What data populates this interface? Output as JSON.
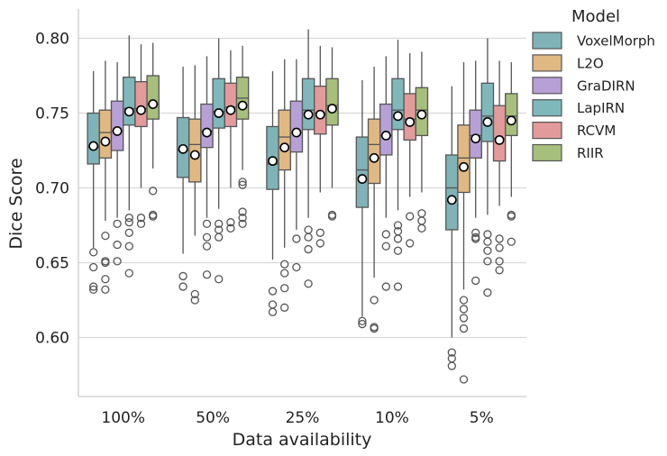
{
  "chart_data": {
    "type": "box",
    "xlabel": "Data availability",
    "ylabel": "Dice Score",
    "ylim": [
      0.56,
      0.82
    ],
    "yticks": [
      0.6,
      0.65,
      0.7,
      0.75,
      0.8
    ],
    "ytick_labels": [
      "0.60",
      "0.65",
      "0.70",
      "0.75",
      "0.80"
    ],
    "grid": "horizontal",
    "legend_position": "outside-top-right",
    "legend_title": "Model",
    "categories": [
      "100%",
      "50%",
      "25%",
      "10%",
      "5%"
    ],
    "series": [
      {
        "name": "VoxelMorph",
        "color": "#7fb3b7",
        "boxes": [
          {
            "whislo": 0.66,
            "q1": 0.716,
            "med": 0.727,
            "q3": 0.75,
            "whishi": 0.778,
            "mean": 0.728,
            "fliers": [
              0.657,
              0.647,
              0.634,
              0.632
            ]
          },
          {
            "whislo": 0.656,
            "q1": 0.707,
            "med": 0.725,
            "q3": 0.747,
            "whishi": 0.781,
            "mean": 0.726,
            "fliers": [
              0.641,
              0.634
            ]
          },
          {
            "whislo": 0.652,
            "q1": 0.699,
            "med": 0.716,
            "q3": 0.741,
            "whishi": 0.778,
            "mean": 0.718,
            "fliers": [
              0.631,
              0.622,
              0.617
            ]
          },
          {
            "whislo": 0.614,
            "q1": 0.687,
            "med": 0.712,
            "q3": 0.734,
            "whishi": 0.772,
            "mean": 0.706,
            "fliers": [
              0.611,
              0.609
            ]
          },
          {
            "whislo": 0.6,
            "q1": 0.672,
            "med": 0.7,
            "q3": 0.722,
            "whishi": 0.768,
            "mean": 0.692,
            "fliers": [
              0.59,
              0.586,
              0.581
            ]
          }
        ]
      },
      {
        "name": "L2O",
        "color": "#e0b882",
        "boxes": [
          {
            "whislo": 0.678,
            "q1": 0.72,
            "med": 0.737,
            "q3": 0.752,
            "whishi": 0.785,
            "mean": 0.731,
            "fliers": [
              0.668,
              0.651,
              0.65,
              0.639,
              0.632
            ]
          },
          {
            "whislo": 0.668,
            "q1": 0.704,
            "med": 0.729,
            "q3": 0.746,
            "whishi": 0.782,
            "mean": 0.722,
            "fliers": [
              0.629,
              0.625
            ]
          },
          {
            "whislo": 0.66,
            "q1": 0.712,
            "med": 0.734,
            "q3": 0.752,
            "whishi": 0.786,
            "mean": 0.727,
            "fliers": [
              0.649,
              0.643,
              0.633,
              0.62
            ]
          },
          {
            "whislo": 0.64,
            "q1": 0.703,
            "med": 0.729,
            "q3": 0.746,
            "whishi": 0.781,
            "mean": 0.72,
            "fliers": [
              0.625,
              0.607,
              0.606
            ]
          },
          {
            "whislo": 0.632,
            "q1": 0.697,
            "med": 0.72,
            "q3": 0.742,
            "whishi": 0.784,
            "mean": 0.714,
            "fliers": [
              0.625,
              0.619,
              0.613,
              0.606,
              0.572
            ]
          }
        ]
      },
      {
        "name": "GraDIRN",
        "color": "#b7a0d6",
        "boxes": [
          {
            "whislo": 0.68,
            "q1": 0.725,
            "med": 0.738,
            "q3": 0.758,
            "whishi": 0.784,
            "mean": 0.738,
            "fliers": [
              0.676,
              0.662,
              0.651
            ]
          },
          {
            "whislo": 0.68,
            "q1": 0.727,
            "med": 0.738,
            "q3": 0.756,
            "whishi": 0.788,
            "mean": 0.737,
            "fliers": [
              0.676,
              0.667,
              0.661,
              0.642
            ]
          },
          {
            "whislo": 0.672,
            "q1": 0.724,
            "med": 0.737,
            "q3": 0.758,
            "whishi": 0.786,
            "mean": 0.737,
            "fliers": [
              0.666,
              0.647
            ]
          },
          {
            "whislo": 0.68,
            "q1": 0.722,
            "med": 0.735,
            "q3": 0.756,
            "whishi": 0.788,
            "mean": 0.735,
            "fliers": [
              0.669,
              0.661,
              0.634
            ]
          },
          {
            "whislo": 0.68,
            "q1": 0.72,
            "med": 0.735,
            "q3": 0.752,
            "whishi": 0.785,
            "mean": 0.733,
            "fliers": [
              0.67,
              0.667,
              0.666,
              0.638
            ]
          }
        ]
      },
      {
        "name": "LapIRN",
        "color": "#7fb8bb",
        "boxes": [
          {
            "whislo": 0.685,
            "q1": 0.742,
            "med": 0.753,
            "q3": 0.774,
            "whishi": 0.802,
            "mean": 0.751,
            "fliers": [
              0.68,
              0.677,
              0.67,
              0.661,
              0.643
            ]
          },
          {
            "whislo": 0.686,
            "q1": 0.74,
            "med": 0.751,
            "q3": 0.773,
            "whishi": 0.8,
            "mean": 0.75,
            "fliers": [
              0.676,
              0.672,
              0.667,
              0.639
            ]
          },
          {
            "whislo": 0.68,
            "q1": 0.739,
            "med": 0.752,
            "q3": 0.773,
            "whishi": 0.806,
            "mean": 0.749,
            "fliers": [
              0.672,
              0.667,
              0.659,
              0.636
            ]
          },
          {
            "whislo": 0.685,
            "q1": 0.739,
            "med": 0.752,
            "q3": 0.773,
            "whishi": 0.799,
            "mean": 0.748,
            "fliers": [
              0.675,
              0.671,
              0.666,
              0.658,
              0.634
            ]
          },
          {
            "whislo": 0.682,
            "q1": 0.731,
            "med": 0.748,
            "q3": 0.77,
            "whishi": 0.8,
            "mean": 0.744,
            "fliers": [
              0.669,
              0.664,
              0.658,
              0.651,
              0.63
            ]
          }
        ]
      },
      {
        "name": "RCVM",
        "color": "#e29a9b",
        "boxes": [
          {
            "whislo": 0.7,
            "q1": 0.741,
            "med": 0.753,
            "q3": 0.771,
            "whishi": 0.796,
            "mean": 0.752,
            "fliers": [
              0.68,
              0.676
            ]
          },
          {
            "whislo": 0.7,
            "q1": 0.741,
            "med": 0.754,
            "q3": 0.77,
            "whishi": 0.792,
            "mean": 0.752,
            "fliers": [
              0.677,
              0.673
            ]
          },
          {
            "whislo": 0.697,
            "q1": 0.736,
            "med": 0.75,
            "q3": 0.768,
            "whishi": 0.795,
            "mean": 0.749,
            "fliers": [
              0.67,
              0.663
            ]
          },
          {
            "whislo": 0.694,
            "q1": 0.732,
            "med": 0.746,
            "q3": 0.763,
            "whishi": 0.79,
            "mean": 0.744,
            "fliers": [
              0.681,
              0.663
            ]
          },
          {
            "whislo": 0.688,
            "q1": 0.718,
            "med": 0.733,
            "q3": 0.755,
            "whishi": 0.785,
            "mean": 0.732,
            "fliers": [
              0.666,
              0.66,
              0.651,
              0.645
            ]
          }
        ]
      },
      {
        "name": "RIIR",
        "color": "#a6bf7c",
        "boxes": [
          {
            "whislo": 0.713,
            "q1": 0.746,
            "med": 0.756,
            "q3": 0.775,
            "whishi": 0.797,
            "mean": 0.756,
            "fliers": [
              0.698,
              0.682,
              0.681
            ]
          },
          {
            "whislo": 0.712,
            "q1": 0.746,
            "med": 0.76,
            "q3": 0.774,
            "whishi": 0.795,
            "mean": 0.755,
            "fliers": [
              0.704,
              0.702,
              0.684,
              0.68,
              0.676
            ]
          },
          {
            "whislo": 0.7,
            "q1": 0.742,
            "med": 0.755,
            "q3": 0.773,
            "whishi": 0.794,
            "mean": 0.753,
            "fliers": [
              0.682,
              0.681
            ]
          },
          {
            "whislo": 0.697,
            "q1": 0.735,
            "med": 0.752,
            "q3": 0.767,
            "whishi": 0.791,
            "mean": 0.749,
            "fliers": [
              0.683,
              0.678,
              0.673
            ]
          },
          {
            "whislo": 0.694,
            "q1": 0.735,
            "med": 0.748,
            "q3": 0.763,
            "whishi": 0.784,
            "mean": 0.745,
            "fliers": [
              0.682,
              0.681,
              0.664
            ]
          }
        ]
      }
    ]
  }
}
